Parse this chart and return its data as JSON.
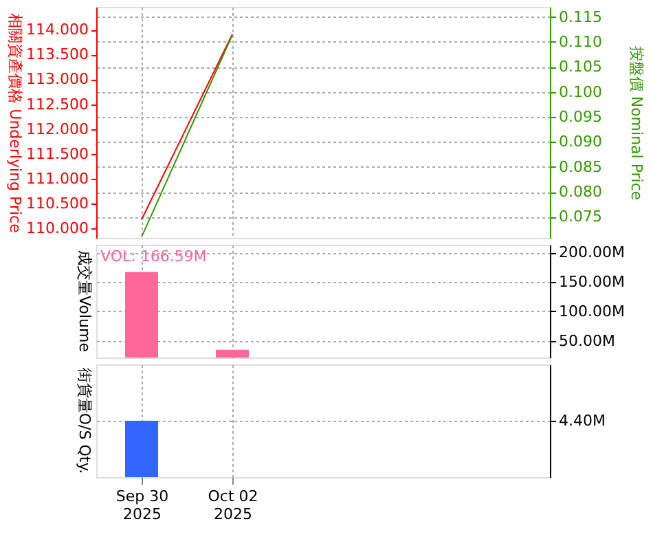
{
  "chart_data": [
    {
      "type": "line",
      "x": [
        "2025-09-30",
        "2025-10-02"
      ],
      "xlim": [
        "2025-09-29",
        "2025-10-09"
      ],
      "xticks": [
        {
          "value": "2025-09-30",
          "label": null
        },
        {
          "value": "2025-10-02",
          "label": null
        }
      ],
      "series": [
        {
          "color": "#ff0000",
          "axis": "y",
          "values": [
            110.18,
            113.91
          ]
        },
        {
          "color": "#339900",
          "axis": "y2",
          "values": [
            0.071,
            0.1114
          ]
        }
      ],
      "ylabel": "相關資產價格 Underlying Price",
      "y2label": "按盤價 Nominal Price",
      "ylim": [
        109.81,
        114.46
      ],
      "yticks": [
        {
          "value": 110,
          "label": "110.000"
        },
        {
          "value": 110.5,
          "label": "110.500"
        },
        {
          "value": 111,
          "label": "111.000"
        },
        {
          "value": 111.5,
          "label": "111.500"
        },
        {
          "value": 112,
          "label": "112.000"
        },
        {
          "value": 112.5,
          "label": "112.500"
        },
        {
          "value": 113,
          "label": "113.000"
        },
        {
          "value": 113.5,
          "label": "113.500"
        },
        {
          "value": 114,
          "label": "114.000"
        }
      ],
      "y2lim": [
        0.0708,
        0.117
      ],
      "y2ticks": [
        0.075,
        {
          "value": 0.08,
          "label": "0.080"
        },
        0.085,
        {
          "value": 0.09,
          "label": "0.090"
        },
        0.095,
        {
          "value": 0.1,
          "label": "0.100"
        },
        0.105,
        {
          "value": 0.11,
          "label": "0.110"
        },
        0.115
      ],
      "tick_labels": "y",
      "grid": true
    },
    {
      "type": "bar",
      "x": [
        "2025-09-30",
        "2025-10-02"
      ],
      "xlim": [
        "2025-09-29",
        "2025-10-09"
      ],
      "xticks": [
        {
          "value": "2025-09-30",
          "label": null
        },
        {
          "value": "2025-10-02",
          "label": null
        }
      ],
      "values": [
        166.59,
        34.8
      ],
      "color": "#ff6699",
      "ylabel": "成交量Volume",
      "ylim": [
        21.7,
        213
      ],
      "yticks": [
        {
          "value": 50,
          "label": "50.00M"
        },
        {
          "value": 100,
          "label": "100.00M"
        },
        {
          "value": 150,
          "label": "150.00M"
        },
        {
          "value": 200,
          "label": "200.00M"
        }
      ],
      "annotations": [
        "VOL: 166.59M"
      ],
      "tick_labels": "y",
      "grid": true
    },
    {
      "type": "bar",
      "x": [
        "2025-09-30"
      ],
      "xlim": [
        "2025-09-29",
        "2025-10-09"
      ],
      "xticks": [
        {
          "value": "2025-09-30",
          "label": "Sep 30\n2025"
        },
        {
          "value": "2025-10-02",
          "label": "Oct 02\n2025"
        }
      ],
      "values": [
        4.4
      ],
      "color": "#3366ff",
      "ylabel": "街貨量O/S Qty.",
      "ylim": [
        0,
        8.8
      ],
      "yticks": [
        {
          "value": 4.4,
          "label": "4.40M"
        }
      ],
      "grid": true
    }
  ]
}
